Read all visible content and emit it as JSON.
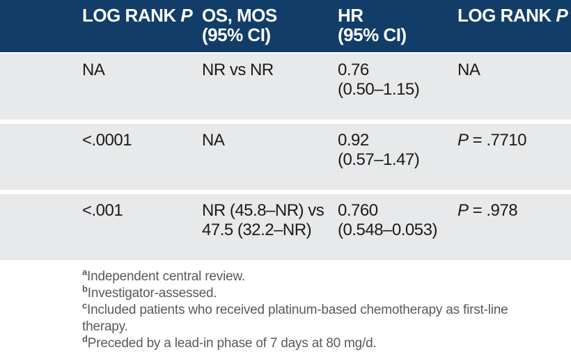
{
  "colors": {
    "header_bg": "#113d68",
    "row_bg": "#e8e9ea",
    "header_text": "#ffffff",
    "body_text": "#1a1a1a",
    "footnote_text": "#58595b"
  },
  "table": {
    "header": {
      "col1": {
        "text": "LOG RANK",
        "italic": "P"
      },
      "col2": {
        "line1": "OS, MOS",
        "line2": "(95% CI)"
      },
      "col3": {
        "line1": "HR",
        "line2": "(95% CI)"
      },
      "col4": {
        "text": "LOG RANK",
        "italic": "P"
      }
    },
    "rows": [
      {
        "c1": "NA",
        "c2_l1": "NR vs NR",
        "c2_l2": "",
        "c3_l1": "0.76",
        "c3_l2": "(0.50–1.15)",
        "c4_italic": "",
        "c4_rest": "NA"
      },
      {
        "c1": "<.0001",
        "c2_l1": "NA",
        "c2_l2": "",
        "c3_l1": "0.92",
        "c3_l2": "(0.57–1.47)",
        "c4_italic": "P",
        "c4_rest": " = .7710"
      },
      {
        "c1": "<.001",
        "c2_l1": "NR (45.8–NR) vs",
        "c2_l2": "47.5 (32.2–NR)",
        "c3_l1": "0.760",
        "c3_l2": "(0.548–0.053)",
        "c4_italic": "P",
        "c4_rest": " = .978"
      }
    ],
    "footnotes": [
      {
        "sup": "a",
        "text": "Independent central review."
      },
      {
        "sup": "b",
        "text": "Investigator-assessed."
      },
      {
        "sup": "c",
        "text": "Included patients who received platinum-based chemotherapy as first-line therapy."
      },
      {
        "sup": "d",
        "text": "Preceded by a lead-in phase of 7 days at 80 mg/d."
      }
    ]
  }
}
